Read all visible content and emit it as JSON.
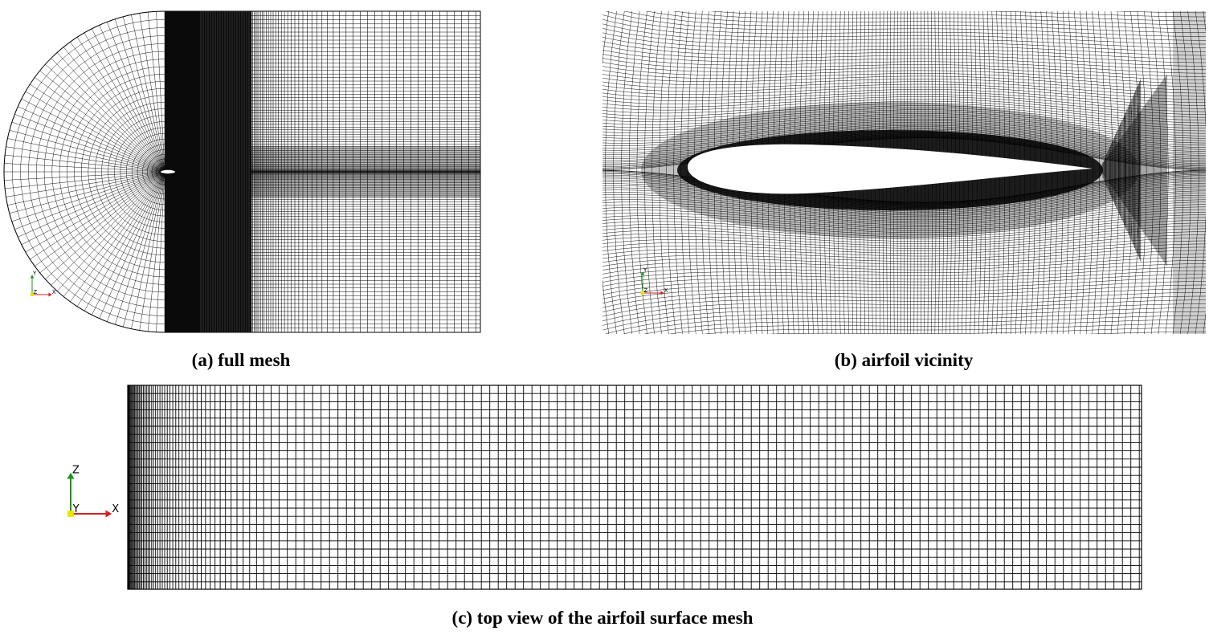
{
  "captions": {
    "a": "(a) full mesh",
    "b": "(b) airfoil vicinity",
    "c": "(c) top view of the airfoil surface mesh"
  },
  "axes": {
    "a": {
      "up": "Y",
      "out": "Z",
      "right": "X"
    },
    "b": {
      "up": "Y",
      "out": "Z",
      "right": "X"
    },
    "c": {
      "up": "Z",
      "out": "Y",
      "right": "X"
    }
  },
  "colors": {
    "mesh_line": "#000000",
    "axis_x": "#d42020",
    "axis_y": "#e6e600",
    "axis_z": "#1a9a1a",
    "background": "#ffffff"
  }
}
